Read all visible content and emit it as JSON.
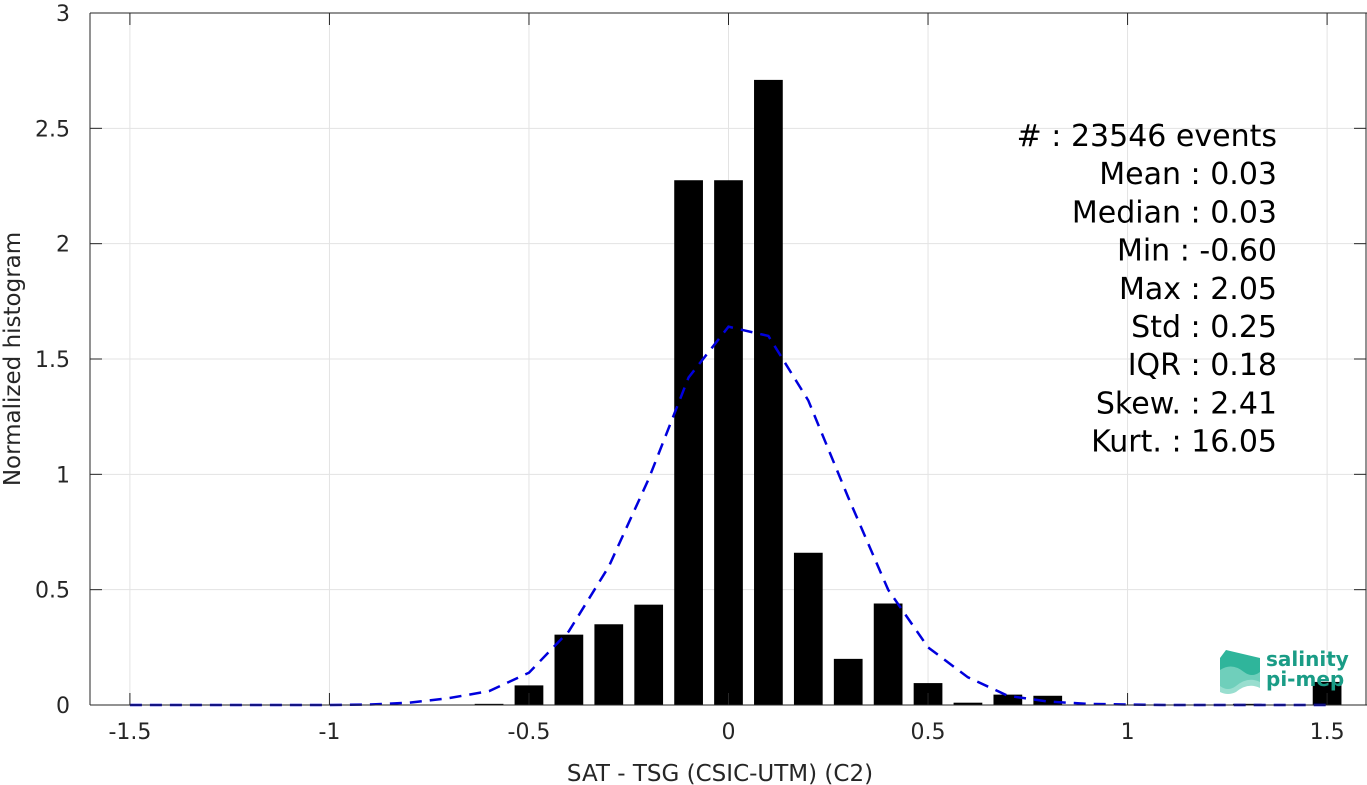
{
  "chart_data": {
    "type": "bar",
    "xlabel": "SAT - TSG (CSIC-UTM) (C2)",
    "ylabel": "Normalized histogram",
    "xlim": [
      -1.6,
      1.6
    ],
    "ylim": [
      0,
      3
    ],
    "xticks": [
      -1.5,
      -1,
      -0.5,
      0,
      0.5,
      1,
      1.5
    ],
    "xtick_labels": [
      "-1.5",
      "-1",
      "-0.5",
      "0",
      "0.5",
      "1",
      "1.5"
    ],
    "yticks": [
      0,
      0.5,
      1,
      1.5,
      2,
      2.5,
      3
    ],
    "ytick_labels": [
      "0",
      "0.5",
      "1",
      "1.5",
      "2",
      "2.5",
      "3"
    ],
    "grid": true,
    "bar_color": "#000000",
    "fit_color": "#0000dd",
    "bin_width": 0.1,
    "bars": {
      "x": [
        -0.6,
        -0.5,
        -0.4,
        -0.3,
        -0.2,
        -0.1,
        0.0,
        0.1,
        0.2,
        0.3,
        0.4,
        0.5,
        0.6,
        0.7,
        0.8,
        1.3,
        1.5
      ],
      "values": [
        0.005,
        0.085,
        0.305,
        0.35,
        0.435,
        2.275,
        2.275,
        2.71,
        0.66,
        0.2,
        0.44,
        0.095,
        0.01,
        0.045,
        0.04,
        0.005,
        0.1
      ]
    },
    "fit": {
      "x": [
        -1.5,
        -1.4,
        -1.3,
        -1.2,
        -1.1,
        -1.0,
        -0.9,
        -0.8,
        -0.7,
        -0.6,
        -0.5,
        -0.4,
        -0.3,
        -0.2,
        -0.1,
        0.0,
        0.1,
        0.2,
        0.3,
        0.4,
        0.5,
        0.6,
        0.7,
        0.8,
        0.9,
        1.0,
        1.1,
        1.2,
        1.3,
        1.4,
        1.5
      ],
      "y": [
        0,
        0,
        0,
        0,
        0,
        0,
        0.002,
        0.01,
        0.03,
        0.06,
        0.14,
        0.32,
        0.6,
        0.98,
        1.42,
        1.64,
        1.6,
        1.32,
        0.9,
        0.5,
        0.25,
        0.12,
        0.04,
        0.015,
        0.005,
        0.002,
        0,
        0,
        0,
        0,
        0
      ]
    },
    "stats": [
      {
        "label": "#  : 23546 events"
      },
      {
        "label": "Mean : 0.03"
      },
      {
        "label": "Median : 0.03"
      },
      {
        "label": "Min : -0.60"
      },
      {
        "label": "Max : 2.05"
      },
      {
        "label": "Std : 0.25"
      },
      {
        "label": "IQR : 0.18"
      },
      {
        "label": "Skew. : 2.41"
      },
      {
        "label": "Kurt. : 16.05"
      }
    ]
  },
  "logo": {
    "line1": "salinity",
    "line2": "pi-mep"
  }
}
